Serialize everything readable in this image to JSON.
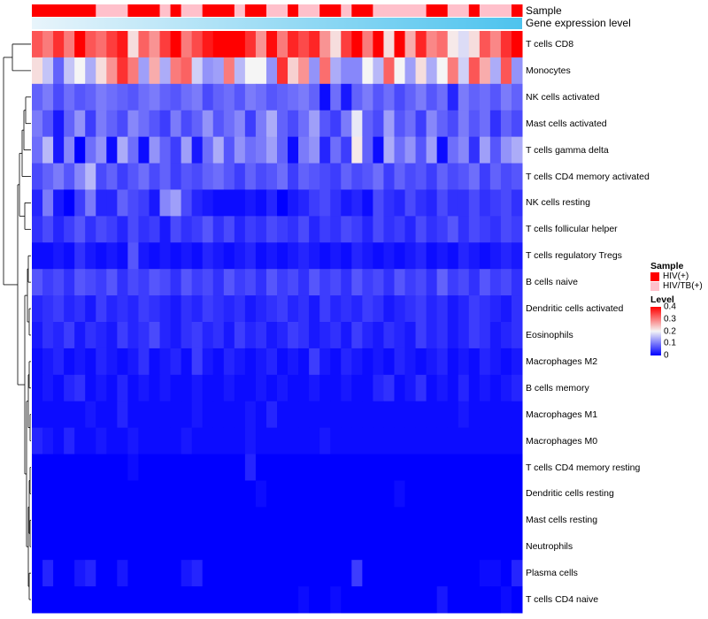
{
  "chart_data": {
    "type": "heatmap",
    "annotation_tracks": [
      {
        "name": "Sample",
        "label": "Sample"
      },
      {
        "name": "Gene expression level",
        "label": "Gene expression level"
      }
    ],
    "sample_groups": {
      "title": "Sample",
      "entries": [
        {
          "label": "HIV(+)",
          "color": "#ff0000"
        },
        {
          "label": "HIV/TB(+)",
          "color": "#ffc0cb"
        }
      ],
      "sequence": [
        "HIV(+)",
        "HIV(+)",
        "HIV(+)",
        "HIV(+)",
        "HIV(+)",
        "HIV(+)",
        "HIV/TB(+)",
        "HIV/TB(+)",
        "HIV/TB(+)",
        "HIV(+)",
        "HIV(+)",
        "HIV(+)",
        "HIV/TB(+)",
        "HIV(+)",
        "HIV/TB(+)",
        "HIV/TB(+)",
        "HIV(+)",
        "HIV(+)",
        "HIV(+)",
        "HIV/TB(+)",
        "HIV(+)",
        "HIV(+)",
        "HIV/TB(+)",
        "HIV/TB(+)",
        "HIV(+)",
        "HIV/TB(+)",
        "HIV/TB(+)",
        "HIV(+)",
        "HIV(+)",
        "HIV/TB(+)",
        "HIV(+)",
        "HIV(+)",
        "HIV/TB(+)",
        "HIV/TB(+)",
        "HIV/TB(+)",
        "HIV/TB(+)",
        "HIV/TB(+)",
        "HIV(+)",
        "HIV(+)",
        "HIV/TB(+)",
        "HIV/TB(+)",
        "HIV(+)",
        "HIV/TB(+)",
        "HIV/TB(+)",
        "HIV/TB(+)",
        "HIV(+)"
      ]
    },
    "rows": [
      "T cells CD8",
      "Monocytes",
      "NK cells activated",
      "Mast cells activated",
      "T cells gamma delta",
      "T cells CD4 memory activated",
      "NK cells resting",
      "T cells follicular helper",
      "T cells regulatory  Tregs",
      "B cells naive",
      "Dendritic cells activated",
      "Eosinophils",
      "Macrophages M2",
      "B cells memory",
      "Macrophages M1",
      "Macrophages M0",
      "T cells CD4 memory resting",
      "Dendritic cells resting",
      "Mast cells resting",
      "Neutrophils",
      "Plasma cells",
      "T cells CD4 naive"
    ],
    "values": [
      [
        0.33,
        0.3,
        0.36,
        0.3,
        0.4,
        0.33,
        0.31,
        0.35,
        0.38,
        0.22,
        0.32,
        0.28,
        0.35,
        0.41,
        0.3,
        0.34,
        0.38,
        0.42,
        0.42,
        0.4,
        0.36,
        0.28,
        0.39,
        0.3,
        0.37,
        0.34,
        0.37,
        0.28,
        0.22,
        0.35,
        0.42,
        0.3,
        0.4,
        0.22,
        0.4,
        0.26,
        0.37,
        0.29,
        0.31,
        0.21,
        0.18,
        0.22,
        0.33,
        0.29,
        0.36,
        0.42
      ],
      [
        0.22,
        0.16,
        0.08,
        0.16,
        0.2,
        0.14,
        0.22,
        0.28,
        0.36,
        0.3,
        0.13,
        0.26,
        0.14,
        0.3,
        0.32,
        0.17,
        0.12,
        0.13,
        0.3,
        0.15,
        0.2,
        0.2,
        0.12,
        0.36,
        0.23,
        0.28,
        0.12,
        0.31,
        0.14,
        0.11,
        0.11,
        0.2,
        0.15,
        0.32,
        0.2,
        0.13,
        0.22,
        0.14,
        0.2,
        0.3,
        0.17,
        0.33,
        0.26,
        0.14,
        0.33,
        0.12
      ],
      [
        0.08,
        0.1,
        0.06,
        0.09,
        0.07,
        0.08,
        0.1,
        0.09,
        0.08,
        0.07,
        0.09,
        0.1,
        0.08,
        0.07,
        0.09,
        0.1,
        0.06,
        0.08,
        0.09,
        0.07,
        0.1,
        0.09,
        0.07,
        0.08,
        0.09,
        0.1,
        0.08,
        0.01,
        0.09,
        0.02,
        0.08,
        0.1,
        0.07,
        0.09,
        0.06,
        0.08,
        0.1,
        0.07,
        0.09,
        0.03,
        0.1,
        0.08,
        0.09,
        0.07,
        0.1,
        0.08
      ],
      [
        0.1,
        0.07,
        0.02,
        0.08,
        0.12,
        0.05,
        0.1,
        0.08,
        0.06,
        0.11,
        0.09,
        0.07,
        0.05,
        0.1,
        0.06,
        0.08,
        0.12,
        0.07,
        0.09,
        0.11,
        0.05,
        0.1,
        0.14,
        0.08,
        0.06,
        0.09,
        0.13,
        0.07,
        0.05,
        0.1,
        0.19,
        0.08,
        0.06,
        0.13,
        0.07,
        0.09,
        0.05,
        0.11,
        0.08,
        0.06,
        0.1,
        0.07,
        0.09,
        0.04,
        0.08,
        0.06
      ],
      [
        0.09,
        0.15,
        0.02,
        0.11,
        0.0,
        0.09,
        0.12,
        0.01,
        0.14,
        0.09,
        0.01,
        0.12,
        0.08,
        0.05,
        0.13,
        0.02,
        0.09,
        0.14,
        0.07,
        0.12,
        0.09,
        0.1,
        0.13,
        0.08,
        0.01,
        0.1,
        0.12,
        0.03,
        0.09,
        0.05,
        0.21,
        0.08,
        0.01,
        0.14,
        0.09,
        0.12,
        0.07,
        0.13,
        0.01,
        0.09,
        0.11,
        0.04,
        0.13,
        0.07,
        0.12,
        0.14
      ],
      [
        0.06,
        0.08,
        0.1,
        0.07,
        0.11,
        0.15,
        0.06,
        0.08,
        0.05,
        0.07,
        0.09,
        0.06,
        0.08,
        0.05,
        0.07,
        0.06,
        0.08,
        0.09,
        0.07,
        0.05,
        0.08,
        0.06,
        0.07,
        0.09,
        0.05,
        0.08,
        0.07,
        0.06,
        0.05,
        0.08,
        0.06,
        0.07,
        0.09,
        0.05,
        0.08,
        0.06,
        0.07,
        0.05,
        0.08,
        0.06,
        0.07,
        0.09,
        0.05,
        0.08,
        0.06,
        0.07
      ],
      [
        0.03,
        0.1,
        0.02,
        0.0,
        0.05,
        0.1,
        0.03,
        0.03,
        0.08,
        0.06,
        0.05,
        0.02,
        0.11,
        0.13,
        0.06,
        0.03,
        0.02,
        0.01,
        0.01,
        0.01,
        0.02,
        0.01,
        0.03,
        0.0,
        0.02,
        0.03,
        0.05,
        0.06,
        0.04,
        0.02,
        0.03,
        0.01,
        0.06,
        0.04,
        0.03,
        0.06,
        0.04,
        0.03,
        0.06,
        0.04,
        0.04,
        0.06,
        0.04,
        0.05,
        0.06,
        0.04
      ],
      [
        0.04,
        0.06,
        0.03,
        0.05,
        0.07,
        0.04,
        0.06,
        0.05,
        0.03,
        0.06,
        0.04,
        0.05,
        0.02,
        0.06,
        0.04,
        0.05,
        0.07,
        0.04,
        0.06,
        0.03,
        0.05,
        0.04,
        0.06,
        0.05,
        0.04,
        0.06,
        0.03,
        0.05,
        0.04,
        0.06,
        0.05,
        0.03,
        0.06,
        0.04,
        0.05,
        0.03,
        0.06,
        0.04,
        0.05,
        0.07,
        0.04,
        0.06,
        0.05,
        0.04,
        0.06,
        0.05
      ],
      [
        0.01,
        0.01,
        0.02,
        0.01,
        0.04,
        0.02,
        0.01,
        0.02,
        0.01,
        0.07,
        0.02,
        0.01,
        0.02,
        0.01,
        0.02,
        0.01,
        0.03,
        0.02,
        0.01,
        0.02,
        0.03,
        0.01,
        0.02,
        0.01,
        0.02,
        0.03,
        0.02,
        0.01,
        0.02,
        0.01,
        0.03,
        0.02,
        0.01,
        0.02,
        0.01,
        0.02,
        0.03,
        0.01,
        0.02,
        0.01,
        0.03,
        0.02,
        0.01,
        0.02,
        0.03,
        0.02
      ],
      [
        0.07,
        0.05,
        0.06,
        0.04,
        0.07,
        0.06,
        0.05,
        0.07,
        0.04,
        0.06,
        0.05,
        0.07,
        0.06,
        0.04,
        0.07,
        0.05,
        0.06,
        0.04,
        0.07,
        0.05,
        0.06,
        0.04,
        0.07,
        0.05,
        0.06,
        0.04,
        0.07,
        0.05,
        0.06,
        0.04,
        0.07,
        0.05,
        0.06,
        0.04,
        0.07,
        0.05,
        0.06,
        0.04,
        0.08,
        0.05,
        0.06,
        0.04,
        0.07,
        0.05,
        0.06,
        0.04
      ],
      [
        0.03,
        0.04,
        0.05,
        0.03,
        0.04,
        0.02,
        0.05,
        0.03,
        0.04,
        0.03,
        0.05,
        0.04,
        0.03,
        0.02,
        0.04,
        0.03,
        0.05,
        0.04,
        0.03,
        0.04,
        0.02,
        0.03,
        0.04,
        0.05,
        0.03,
        0.04,
        0.02,
        0.05,
        0.03,
        0.04,
        0.03,
        0.05,
        0.04,
        0.02,
        0.03,
        0.04,
        0.05,
        0.03,
        0.04,
        0.02,
        0.03,
        0.05,
        0.04,
        0.03,
        0.02,
        0.04
      ],
      [
        0.02,
        0.04,
        0.03,
        0.05,
        0.02,
        0.04,
        0.03,
        0.02,
        0.05,
        0.03,
        0.04,
        0.06,
        0.03,
        0.02,
        0.04,
        0.05,
        0.03,
        0.04,
        0.02,
        0.05,
        0.03,
        0.04,
        0.02,
        0.03,
        0.05,
        0.04,
        0.02,
        0.03,
        0.04,
        0.02,
        0.05,
        0.03,
        0.02,
        0.04,
        0.03,
        0.02,
        0.05,
        0.03,
        0.04,
        0.02,
        0.03,
        0.05,
        0.04,
        0.02,
        0.03,
        0.04
      ],
      [
        0.01,
        0.02,
        0.03,
        0.01,
        0.02,
        0.01,
        0.03,
        0.02,
        0.01,
        0.02,
        0.04,
        0.01,
        0.02,
        0.03,
        0.01,
        0.05,
        0.02,
        0.01,
        0.03,
        0.02,
        0.01,
        0.02,
        0.03,
        0.01,
        0.02,
        0.01,
        0.05,
        0.02,
        0.01,
        0.03,
        0.02,
        0.01,
        0.02,
        0.01,
        0.03,
        0.02,
        0.01,
        0.02,
        0.03,
        0.01,
        0.02,
        0.01,
        0.03,
        0.02,
        0.01,
        0.02
      ],
      [
        0.01,
        0.02,
        0.01,
        0.03,
        0.04,
        0.01,
        0.02,
        0.01,
        0.03,
        0.01,
        0.02,
        0.01,
        0.02,
        0.01,
        0.01,
        0.02,
        0.01,
        0.01,
        0.02,
        0.01,
        0.01,
        0.02,
        0.01,
        0.02,
        0.01,
        0.01,
        0.02,
        0.01,
        0.01,
        0.02,
        0.01,
        0.01,
        0.03,
        0.04,
        0.01,
        0.02,
        0.04,
        0.01,
        0.02,
        0.01,
        0.03,
        0.01,
        0.02,
        0.01,
        0.02,
        0.03
      ],
      [
        0.01,
        0.01,
        0.01,
        0.01,
        0.01,
        0.02,
        0.01,
        0.01,
        0.03,
        0.01,
        0.01,
        0.01,
        0.01,
        0.01,
        0.01,
        0.02,
        0.01,
        0.01,
        0.01,
        0.01,
        0.02,
        0.01,
        0.03,
        0.01,
        0.01,
        0.01,
        0.01,
        0.01,
        0.01,
        0.01,
        0.01,
        0.01,
        0.01,
        0.01,
        0.01,
        0.01,
        0.01,
        0.01,
        0.01,
        0.01,
        0.02,
        0.01,
        0.01,
        0.01,
        0.01,
        0.01
      ],
      [
        0.03,
        0.02,
        0.01,
        0.03,
        0.01,
        0.01,
        0.02,
        0.01,
        0.01,
        0.02,
        0.01,
        0.01,
        0.01,
        0.01,
        0.02,
        0.01,
        0.01,
        0.01,
        0.01,
        0.01,
        0.02,
        0.01,
        0.01,
        0.01,
        0.01,
        0.01,
        0.01,
        0.02,
        0.01,
        0.01,
        0.01,
        0.01,
        0.01,
        0.01,
        0.01,
        0.01,
        0.01,
        0.01,
        0.01,
        0.01,
        0.01,
        0.01,
        0.01,
        0.01,
        0.01,
        0.01
      ],
      [
        0.0,
        0.0,
        0.0,
        0.0,
        0.0,
        0.0,
        0.0,
        0.0,
        0.0,
        0.01,
        0.0,
        0.0,
        0.0,
        0.0,
        0.0,
        0.0,
        0.0,
        0.0,
        0.0,
        0.0,
        0.03,
        0.0,
        0.0,
        0.0,
        0.0,
        0.0,
        0.0,
        0.0,
        0.0,
        0.0,
        0.0,
        0.0,
        0.0,
        0.0,
        0.0,
        0.0,
        0.0,
        0.0,
        0.0,
        0.0,
        0.0,
        0.0,
        0.0,
        0.0,
        0.0,
        0.0
      ],
      [
        0.0,
        0.0,
        0.0,
        0.0,
        0.0,
        0.0,
        0.0,
        0.0,
        0.0,
        0.0,
        0.0,
        0.0,
        0.0,
        0.0,
        0.0,
        0.0,
        0.0,
        0.0,
        0.0,
        0.0,
        0.0,
        0.01,
        0.0,
        0.0,
        0.0,
        0.0,
        0.0,
        0.0,
        0.0,
        0.0,
        0.0,
        0.0,
        0.0,
        0.0,
        0.01,
        0.0,
        0.0,
        0.0,
        0.0,
        0.0,
        0.0,
        0.0,
        0.0,
        0.0,
        0.0,
        0.0
      ],
      [
        0.0,
        0.0,
        0.0,
        0.0,
        0.0,
        0.0,
        0.0,
        0.0,
        0.0,
        0.0,
        0.0,
        0.0,
        0.0,
        0.0,
        0.0,
        0.0,
        0.0,
        0.0,
        0.0,
        0.0,
        0.0,
        0.0,
        0.0,
        0.0,
        0.0,
        0.0,
        0.0,
        0.0,
        0.0,
        0.0,
        0.0,
        0.0,
        0.0,
        0.0,
        0.0,
        0.0,
        0.0,
        0.0,
        0.0,
        0.0,
        0.0,
        0.0,
        0.0,
        0.0,
        0.0,
        0.0
      ],
      [
        0.0,
        0.0,
        0.0,
        0.0,
        0.0,
        0.0,
        0.0,
        0.0,
        0.0,
        0.0,
        0.0,
        0.0,
        0.0,
        0.0,
        0.0,
        0.0,
        0.0,
        0.0,
        0.0,
        0.0,
        0.0,
        0.0,
        0.0,
        0.0,
        0.0,
        0.0,
        0.0,
        0.0,
        0.0,
        0.0,
        0.0,
        0.0,
        0.0,
        0.0,
        0.0,
        0.0,
        0.0,
        0.0,
        0.0,
        0.0,
        0.0,
        0.0,
        0.0,
        0.0,
        0.0,
        0.0
      ],
      [
        0.0,
        0.03,
        0.0,
        0.0,
        0.02,
        0.03,
        0.0,
        0.0,
        0.02,
        0.0,
        0.0,
        0.0,
        0.0,
        0.0,
        0.02,
        0.03,
        0.0,
        0.0,
        0.0,
        0.0,
        0.0,
        0.0,
        0.0,
        0.0,
        0.0,
        0.0,
        0.0,
        0.0,
        0.0,
        0.0,
        0.05,
        0.0,
        0.0,
        0.0,
        0.0,
        0.0,
        0.0,
        0.0,
        0.0,
        0.0,
        0.0,
        0.0,
        0.01,
        0.01,
        0.0,
        0.03
      ],
      [
        0.0,
        0.0,
        0.0,
        0.0,
        0.0,
        0.0,
        0.0,
        0.0,
        0.0,
        0.0,
        0.0,
        0.0,
        0.0,
        0.0,
        0.0,
        0.0,
        0.0,
        0.0,
        0.0,
        0.0,
        0.0,
        0.0,
        0.0,
        0.0,
        0.0,
        0.01,
        0.0,
        0.0,
        0.01,
        0.0,
        0.0,
        0.0,
        0.0,
        0.0,
        0.0,
        0.0,
        0.0,
        0.0,
        0.02,
        0.0,
        0.0,
        0.0,
        0.0,
        0.0,
        0.01,
        0.0
      ]
    ],
    "color_scale": {
      "title": "Level",
      "min": 0,
      "max": 0.4,
      "ticks": [
        "0.4",
        "0.3",
        "0.2",
        "0.1",
        "0"
      ],
      "tick_values": [
        0.4,
        0.3,
        0.2,
        0.1,
        0
      ],
      "low_color": "#0000ff",
      "mid_color": "#f5f5f5",
      "high_color": "#ff0000"
    },
    "gradient_track_colors": [
      "#e8f4fb",
      "#4dc3ee"
    ],
    "dendrogram": "hierarchical clustering of rows (left side)"
  }
}
